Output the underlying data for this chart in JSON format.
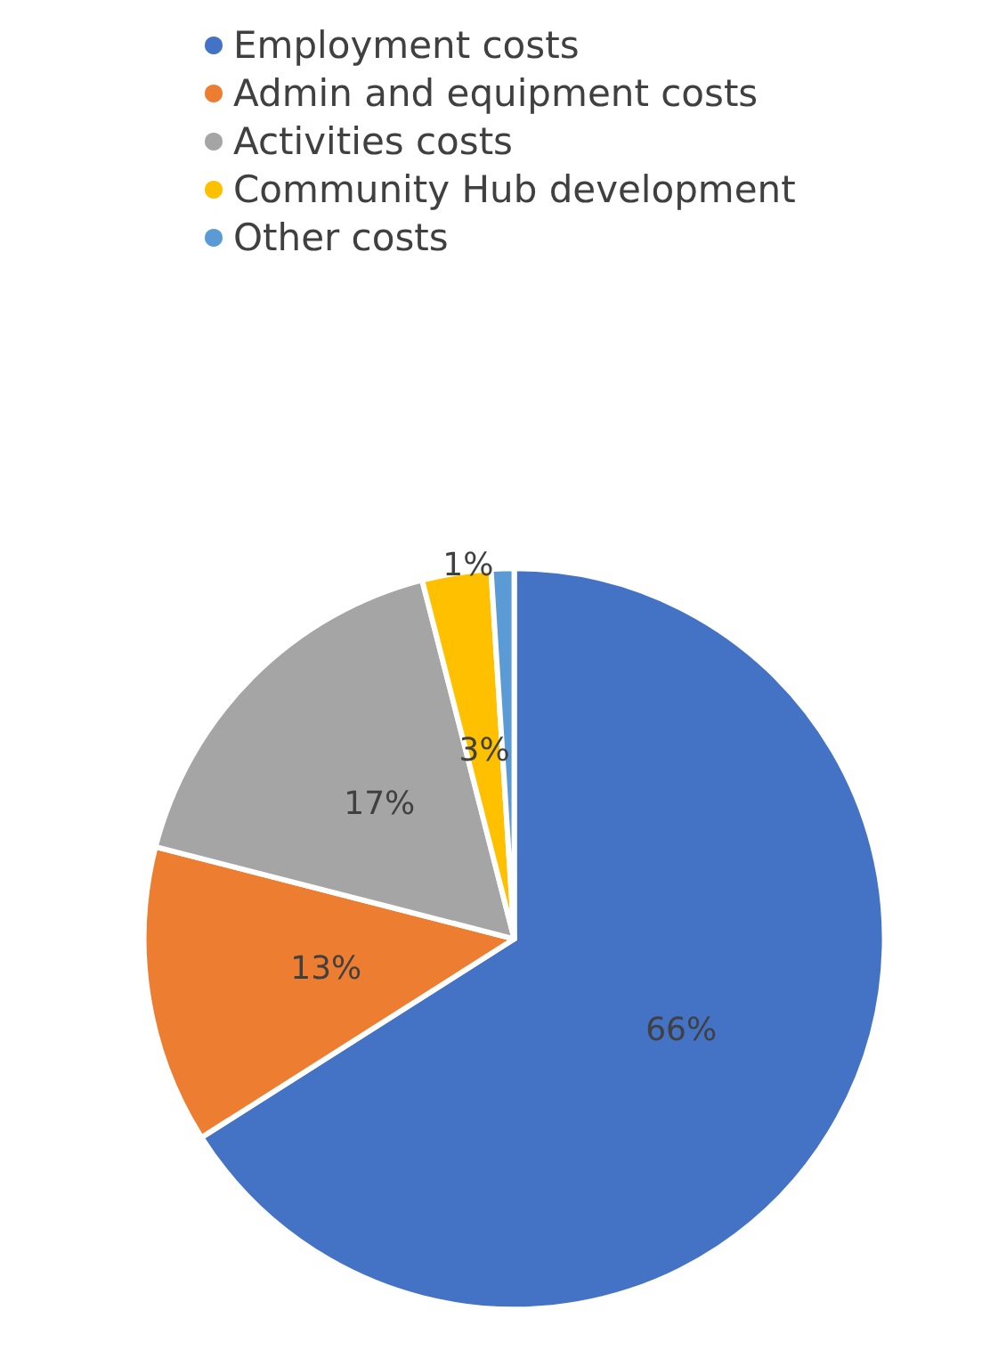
{
  "chart_data": {
    "type": "pie",
    "categories": [
      "Employment costs",
      "Admin and equipment costs",
      "Activities costs",
      "Community Hub development",
      "Other costs"
    ],
    "values": [
      66,
      13,
      17,
      3,
      1
    ],
    "value_labels": [
      "66%",
      "13%",
      "17%",
      "3%",
      "1%"
    ],
    "colors": [
      "#4472c4",
      "#ed7d31",
      "#a5a5a5",
      "#ffc000",
      "#5b9bd5"
    ],
    "legend": "top"
  }
}
